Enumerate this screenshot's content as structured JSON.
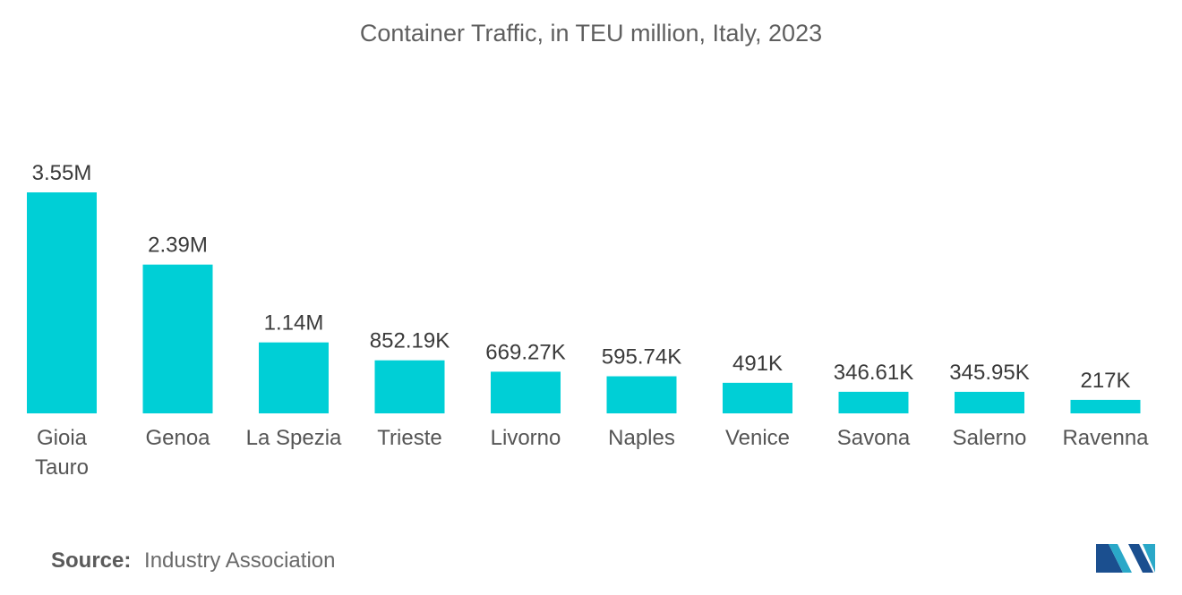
{
  "chart_data": {
    "type": "bar",
    "title": "Container Traffic, in TEU million, Italy, 2023",
    "categories": [
      [
        "Gioia",
        "Tauro"
      ],
      [
        "Genoa"
      ],
      [
        "La Spezia"
      ],
      [
        "Trieste"
      ],
      [
        "Livorno"
      ],
      [
        "Naples"
      ],
      [
        "Venice"
      ],
      [
        "Savona"
      ],
      [
        "Salerno"
      ],
      [
        "Ravenna"
      ]
    ],
    "values": [
      3.55,
      2.39,
      1.14,
      0.85219,
      0.66927,
      0.59574,
      0.491,
      0.34661,
      0.34595,
      0.217
    ],
    "value_labels": [
      "3.55M",
      "2.39M",
      "1.14M",
      "852.19K",
      "669.27K",
      "595.74K",
      "491K",
      "346.61K",
      "345.95K",
      "217K"
    ],
    "xlabel": "",
    "ylabel": "",
    "ylim": [
      0,
      3.55
    ],
    "grid": false,
    "bar_color": "#00cfd6"
  },
  "source": {
    "label": "Source:",
    "text": "Industry Association"
  },
  "logo": {
    "icon": "mordor-intelligence-logo-icon",
    "colors": [
      "#1b4f8f",
      "#2aa8c8"
    ]
  }
}
